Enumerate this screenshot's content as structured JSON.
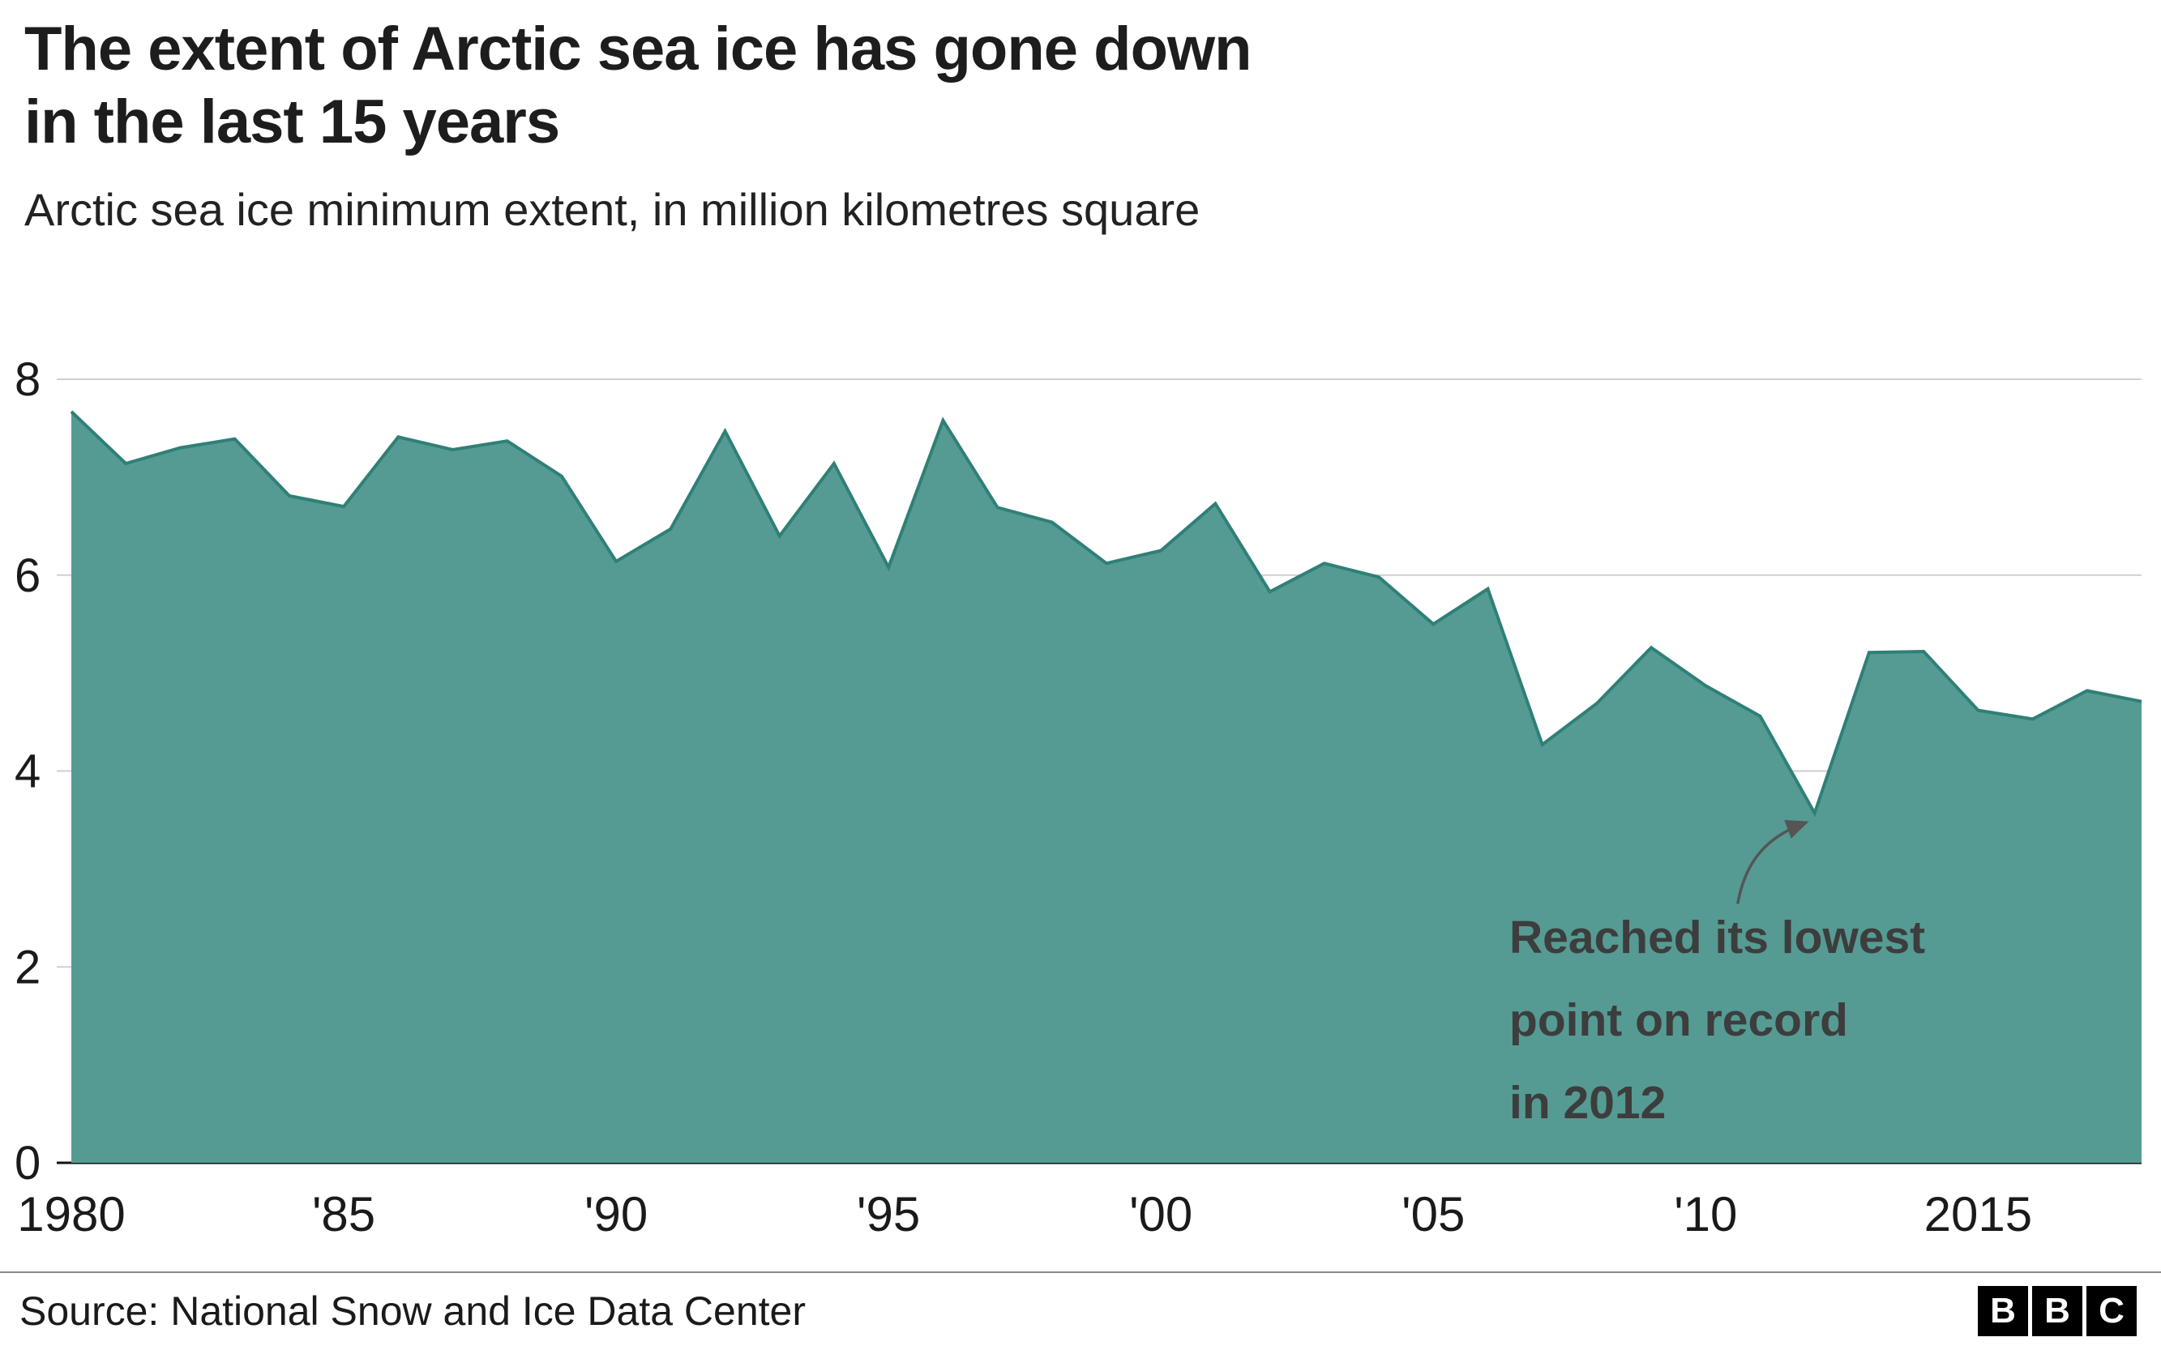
{
  "header": {
    "title_line1": "The extent of Arctic sea ice has gone down",
    "title_line2": "in the last 15 years",
    "subtitle": "Arctic sea ice minimum extent, in million kilometres square"
  },
  "chart_data": {
    "type": "area",
    "title": "The extent of Arctic sea ice has gone down in the last 15 years",
    "subtitle": "Arctic sea ice minimum extent, in million kilometres square",
    "xlabel": "",
    "ylabel": "Arctic sea ice minimum extent (million kilometres square)",
    "x": [
      1980,
      1981,
      1982,
      1983,
      1984,
      1985,
      1986,
      1987,
      1988,
      1989,
      1990,
      1991,
      1992,
      1993,
      1994,
      1995,
      1996,
      1997,
      1998,
      1999,
      2000,
      2001,
      2002,
      2003,
      2004,
      2005,
      2006,
      2007,
      2008,
      2009,
      2010,
      2011,
      2012,
      2013,
      2014,
      2015,
      2016,
      2017,
      2018
    ],
    "values": [
      7.67,
      7.14,
      7.3,
      7.39,
      6.81,
      6.7,
      7.41,
      7.28,
      7.37,
      7.01,
      6.14,
      6.47,
      7.47,
      6.4,
      7.14,
      6.08,
      7.58,
      6.69,
      6.54,
      6.12,
      6.25,
      6.73,
      5.83,
      6.12,
      5.98,
      5.5,
      5.86,
      4.27,
      4.69,
      5.26,
      4.87,
      4.56,
      3.57,
      5.21,
      5.22,
      4.62,
      4.53,
      4.82,
      4.71
    ],
    "xlim": [
      1980,
      2018
    ],
    "ylim": [
      0,
      8
    ],
    "y_ticks": [
      0,
      2,
      4,
      6,
      8
    ],
    "x_ticks": [
      {
        "value": 1980,
        "label": "1980"
      },
      {
        "value": 1985,
        "label": "'85"
      },
      {
        "value": 1990,
        "label": "'90"
      },
      {
        "value": 1995,
        "label": "'95"
      },
      {
        "value": 2000,
        "label": "'00"
      },
      {
        "value": 2005,
        "label": "'05"
      },
      {
        "value": 2010,
        "label": "'10"
      },
      {
        "value": 2015,
        "label": "2015"
      }
    ],
    "grid": "horizontal",
    "legend": "none",
    "area_fill": "#559b93",
    "line_color": "#2f8077",
    "gridline_color": "#cfcfcf",
    "axis_color": "#111111",
    "annotation": {
      "lines": [
        "Reached its lowest",
        "point on record",
        "in 2012"
      ],
      "target_year": 2012,
      "target_value": 3.57,
      "text_color": "#3d3d3d",
      "arrow_color": "#555555"
    }
  },
  "footer": {
    "source": "Source: National Snow and Ice Data Center",
    "logo_letters": [
      "B",
      "B",
      "C"
    ]
  }
}
